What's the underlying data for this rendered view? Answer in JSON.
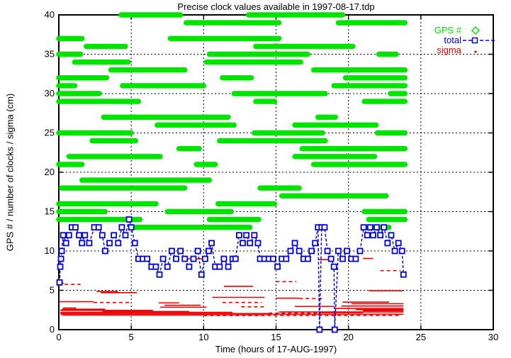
{
  "chart_data": {
    "type": "line",
    "title": "Precise clock values available in 1997-08-17.tdp",
    "xlabel": "Time (hours of 17-AUG-1997)",
    "ylabel": "GPS # / number of clocks / sigma (cm)",
    "xlim": [
      0,
      30
    ],
    "ylim": [
      0,
      40
    ],
    "x_ticks": [
      0,
      5,
      10,
      15,
      20,
      25,
      30
    ],
    "y_ticks": [
      0,
      5,
      10,
      15,
      20,
      25,
      30,
      35,
      40
    ],
    "grid": "dotted black gridlines every 5 units on both axes",
    "colors": {
      "gps": "#00e400",
      "total": "#0000dd",
      "sigma": "#ee0000",
      "axis": "#000000",
      "background": "#ffffff"
    },
    "legend": {
      "position": "top-right-inside",
      "entries": [
        {
          "label": "GPS #",
          "marker": "open-diamond",
          "color": "#00e400"
        },
        {
          "label": "total",
          "marker": "open-square-on-dashed-line",
          "color": "#0000dd"
        },
        {
          "label": "sigma",
          "marker": "dot",
          "color": "#ee0000"
        }
      ]
    },
    "series": {
      "gps": {
        "name": "GPS #",
        "style": "horizontal availability bars (strings of diamond markers), y = satellite number",
        "rows": [
          {
            "prn": 40,
            "segments": [
              [
                4.3,
                8.4
              ],
              [
                13.1,
                19.6
              ]
            ]
          },
          {
            "prn": 39,
            "segments": [
              [
                8.8,
                15.2
              ],
              [
                19.3,
                23.9
              ]
            ]
          },
          {
            "prn": 37,
            "segments": [
              [
                0,
                1.6
              ],
              [
                7.7,
                15.2
              ]
            ]
          },
          {
            "prn": 36,
            "segments": [
              [
                1.9,
                4.6
              ],
              [
                13.6,
                20.3
              ]
            ]
          },
          {
            "prn": 35,
            "segments": [
              [
                0,
                1.5
              ],
              [
                10.4,
                17.2
              ],
              [
                22.1,
                23.3
              ]
            ]
          },
          {
            "prn": 34,
            "segments": [
              [
                1.1,
                4.8
              ],
              [
                10.2,
                16.7
              ]
            ]
          },
          {
            "prn": 33,
            "segments": [
              [
                3.6,
                8.7
              ],
              [
                17.6,
                23.9
              ]
            ]
          },
          {
            "prn": 32,
            "segments": [
              [
                0,
                3.3
              ],
              [
                11.3,
                13.3
              ],
              [
                19.8,
                23.9
              ]
            ]
          },
          {
            "prn": 31,
            "segments": [
              [
                0,
                1.1
              ],
              [
                4.4,
                10.0
              ],
              [
                19.0,
                23.9
              ]
            ]
          },
          {
            "prn": 30,
            "segments": [
              [
                0,
                2.8
              ],
              [
                12.1,
                18.4
              ],
              [
                22.9,
                23.9
              ]
            ]
          },
          {
            "prn": 29,
            "segments": [
              [
                0,
                5.5
              ],
              [
                13.6,
                14.9
              ],
              [
                21.1,
                23.9
              ]
            ]
          },
          {
            "prn": 27,
            "segments": [
              [
                3.1,
                11.7
              ],
              [
                17.9,
                19.1
              ]
            ]
          },
          {
            "prn": 26,
            "segments": [
              [
                6.8,
                12.1
              ],
              [
                16.3,
                21.9
              ]
            ]
          },
          {
            "prn": 25,
            "segments": [
              [
                0,
                5.0
              ],
              [
                13.5,
                18.2
              ],
              [
                22.0,
                23.9
              ]
            ]
          },
          {
            "prn": 24,
            "segments": [
              [
                2.3,
                5.3
              ],
              [
                11.1,
                18.4
              ]
            ]
          },
          {
            "prn": 23,
            "segments": [
              [
                8.3,
                9.7
              ],
              [
                16.8,
                23.9
              ]
            ]
          },
          {
            "prn": 22,
            "segments": [
              [
                0.7,
                7.0
              ],
              [
                16.3,
                21.8
              ]
            ]
          },
          {
            "prn": 21,
            "segments": [
              [
                0,
                1.6
              ],
              [
                9.5,
                10.8
              ],
              [
                17.6,
                23.9
              ]
            ]
          },
          {
            "prn": 19,
            "segments": [
              [
                1.6,
                10.4
              ]
            ]
          },
          {
            "prn": 18,
            "segments": [
              [
                0.2,
                8.7
              ],
              [
                13.9,
                16.6
              ]
            ]
          },
          {
            "prn": 17,
            "segments": [
              [
                15.4,
                22.6
              ]
            ]
          },
          {
            "prn": 16,
            "segments": [
              [
                0,
                6.7
              ],
              [
                11.0,
                14.9
              ]
            ]
          },
          {
            "prn": 15,
            "segments": [
              [
                0,
                3.2
              ],
              [
                7.5,
                11.9
              ],
              [
                21.1,
                23.9
              ]
            ]
          },
          {
            "prn": 14,
            "segments": [
              [
                0,
                5.6
              ],
              [
                10.4,
                13.8
              ],
              [
                21.4,
                23.9
              ]
            ]
          },
          {
            "prn": 13,
            "segments": [
              [
                5.2,
                13.2
              ],
              [
                21.1,
                22.8
              ]
            ]
          }
        ]
      },
      "total": {
        "name": "total",
        "style": "dashed line with open square markers, drops to 0 near hours 18.0 and 19.1",
        "points": [
          [
            0.05,
            6
          ],
          [
            0.1,
            8
          ],
          [
            0.15,
            9
          ],
          [
            0.2,
            10
          ],
          [
            0.3,
            12
          ],
          [
            0.5,
            11
          ],
          [
            0.7,
            12
          ],
          [
            0.9,
            13
          ],
          [
            1.15,
            13
          ],
          [
            1.4,
            12
          ],
          [
            1.6,
            11
          ],
          [
            1.8,
            12
          ],
          [
            2.1,
            11
          ],
          [
            2.45,
            13
          ],
          [
            2.75,
            13
          ],
          [
            3.0,
            12
          ],
          [
            3.2,
            10
          ],
          [
            3.5,
            11
          ],
          [
            3.8,
            12
          ],
          [
            4.1,
            11
          ],
          [
            4.35,
            13
          ],
          [
            4.6,
            12
          ],
          [
            4.85,
            14
          ],
          [
            5.0,
            13
          ],
          [
            5.25,
            11
          ],
          [
            5.5,
            9
          ],
          [
            5.8,
            9
          ],
          [
            6.1,
            9
          ],
          [
            6.4,
            8
          ],
          [
            6.7,
            8
          ],
          [
            6.95,
            7
          ],
          [
            7.2,
            9
          ],
          [
            7.5,
            8
          ],
          [
            7.8,
            10
          ],
          [
            8.1,
            9
          ],
          [
            8.4,
            10
          ],
          [
            8.7,
            9
          ],
          [
            9.0,
            8
          ],
          [
            9.3,
            9
          ],
          [
            9.6,
            10
          ],
          [
            9.85,
            7
          ],
          [
            10.1,
            9
          ],
          [
            10.35,
            10
          ],
          [
            10.55,
            11
          ],
          [
            10.8,
            8
          ],
          [
            11.1,
            8
          ],
          [
            11.4,
            9
          ],
          [
            11.7,
            8
          ],
          [
            12.0,
            9
          ],
          [
            12.2,
            9
          ],
          [
            12.45,
            12
          ],
          [
            12.7,
            11
          ],
          [
            12.95,
            12
          ],
          [
            13.2,
            11
          ],
          [
            13.5,
            12
          ],
          [
            13.75,
            11
          ],
          [
            13.9,
            9
          ],
          [
            14.2,
            9
          ],
          [
            14.5,
            9
          ],
          [
            14.8,
            9
          ],
          [
            15.1,
            8
          ],
          [
            15.4,
            9
          ],
          [
            15.7,
            9
          ],
          [
            16.0,
            10
          ],
          [
            16.3,
            11
          ],
          [
            16.6,
            10
          ],
          [
            16.9,
            9
          ],
          [
            17.2,
            9
          ],
          [
            17.45,
            10
          ],
          [
            17.7,
            11
          ],
          [
            17.9,
            13
          ],
          [
            18.0,
            0
          ],
          [
            18.15,
            13
          ],
          [
            18.35,
            13
          ],
          [
            18.55,
            10
          ],
          [
            18.8,
            9
          ],
          [
            19.0,
            8
          ],
          [
            19.05,
            0
          ],
          [
            19.3,
            10
          ],
          [
            19.6,
            9
          ],
          [
            19.9,
            10
          ],
          [
            20.2,
            9
          ],
          [
            20.5,
            9
          ],
          [
            20.8,
            10
          ],
          [
            21.05,
            13
          ],
          [
            21.3,
            12
          ],
          [
            21.5,
            13
          ],
          [
            21.7,
            12
          ],
          [
            21.95,
            13
          ],
          [
            22.2,
            12
          ],
          [
            22.45,
            13
          ],
          [
            22.7,
            11
          ],
          [
            22.95,
            12
          ],
          [
            23.2,
            10
          ],
          [
            23.45,
            11
          ],
          [
            23.7,
            10
          ],
          [
            23.8,
            7
          ]
        ]
      },
      "sigma": {
        "name": "sigma",
        "style": "thin red near-horizontal traces, one per clock, mostly 1.8-3 cm with outliers up to ~9 cm",
        "segments_y_x1_x2_dashed": [
          [
            5.9,
            0.0,
            0.35,
            0
          ],
          [
            5.75,
            0.4,
            1.5,
            1
          ],
          [
            4.85,
            2.6,
            4.1,
            0
          ],
          [
            4.7,
            2.9,
            5.4,
            0
          ],
          [
            3.55,
            0.05,
            2.4,
            0
          ],
          [
            3.45,
            2.4,
            4.9,
            1
          ],
          [
            3.4,
            6.9,
            8.3,
            0
          ],
          [
            9.0,
            8.9,
            9.9,
            0
          ],
          [
            2.85,
            7.0,
            10.2,
            0
          ],
          [
            2.6,
            0.2,
            3.2,
            0
          ],
          [
            2.45,
            0.1,
            6.5,
            0
          ],
          [
            2.3,
            3.0,
            9.0,
            0
          ],
          [
            2.2,
            0.1,
            12.0,
            0
          ],
          [
            2.05,
            0.1,
            14.5,
            0
          ],
          [
            1.9,
            0.15,
            14.0,
            0
          ],
          [
            2.1,
            14.5,
            18.0,
            1
          ],
          [
            1.95,
            14.0,
            23.8,
            0
          ],
          [
            5.5,
            11.4,
            13.4,
            0
          ],
          [
            4.1,
            10.6,
            14.2,
            0
          ],
          [
            3.45,
            11.3,
            14.0,
            1
          ],
          [
            6.1,
            15.0,
            16.4,
            1
          ],
          [
            4.0,
            15.0,
            16.6,
            0
          ],
          [
            3.95,
            16.6,
            18.3,
            1
          ],
          [
            2.95,
            16.3,
            19.0,
            0
          ],
          [
            4.95,
            21.4,
            23.8,
            0
          ],
          [
            9.05,
            21.0,
            21.7,
            0
          ],
          [
            8.9,
            17.9,
            19.0,
            0
          ],
          [
            7.5,
            22.2,
            23.6,
            1
          ],
          [
            3.5,
            19.6,
            22.8,
            0
          ],
          [
            3.3,
            20.2,
            23.8,
            0
          ],
          [
            3.0,
            19.5,
            23.8,
            0
          ],
          [
            2.7,
            19.0,
            23.8,
            0
          ],
          [
            2.55,
            20.5,
            23.8,
            0
          ],
          [
            2.4,
            21.0,
            23.8,
            0
          ],
          [
            2.25,
            15.2,
            23.8,
            0
          ],
          [
            1.85,
            0.3,
            10.0,
            0
          ],
          [
            1.8,
            10.0,
            23.6,
            1
          ],
          [
            2.75,
            0.3,
            1.2,
            0
          ],
          [
            2.9,
            12.6,
            14.3,
            1
          ],
          [
            3.1,
            7.3,
            9.8,
            0
          ],
          [
            2.15,
            18.0,
            21.0,
            0
          ]
        ]
      }
    }
  }
}
